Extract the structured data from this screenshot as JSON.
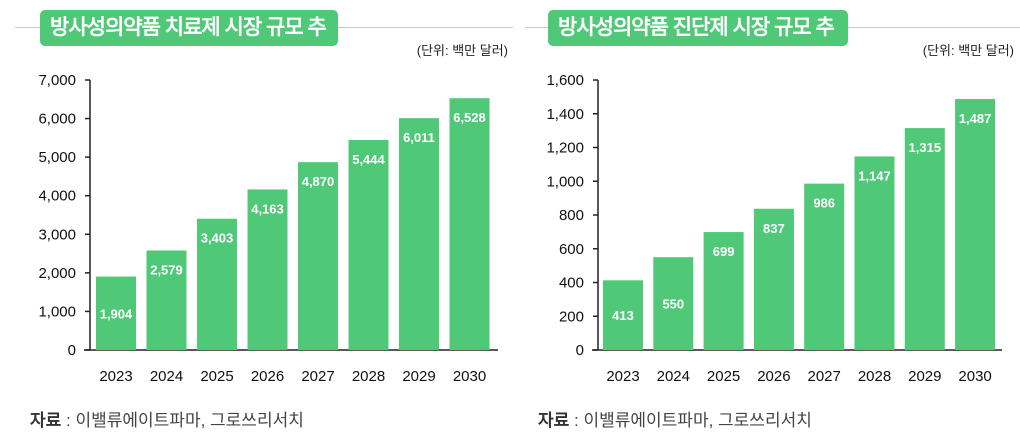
{
  "chart_data": [
    {
      "type": "bar",
      "title": "방사성의약품 치료제 시장 규모 추이",
      "unit": "(단위: 백만 달러)",
      "categories": [
        "2023",
        "2024",
        "2025",
        "2026",
        "2027",
        "2028",
        "2029",
        "2030"
      ],
      "values": [
        1904,
        2579,
        3403,
        4163,
        4870,
        5444,
        6011,
        6528
      ],
      "value_labels": [
        "1,904",
        "2,579",
        "3,403",
        "4,163",
        "4,870",
        "5,444",
        "6,011",
        "6,528"
      ],
      "ylim": [
        0,
        7000
      ],
      "yticks": [
        "0",
        "1,000",
        "2,000",
        "3,000",
        "4,000",
        "5,000",
        "6,000",
        "7,000"
      ],
      "grid": false,
      "bar_color": "#4fc878",
      "source_label": "자료",
      "source_text": ": 이밸류에이트파마, 그로쓰리서치"
    },
    {
      "type": "bar",
      "title": "방사성의약품 진단제 시장 규모 추이",
      "unit": "(단위: 백만 달러)",
      "categories": [
        "2023",
        "2024",
        "2025",
        "2026",
        "2027",
        "2028",
        "2029",
        "2030"
      ],
      "values": [
        413,
        550,
        699,
        837,
        986,
        1147,
        1315,
        1487
      ],
      "value_labels": [
        "413",
        "550",
        "699",
        "837",
        "986",
        "1,147",
        "1,315",
        "1,487"
      ],
      "ylim": [
        0,
        1600
      ],
      "yticks": [
        "0",
        "200",
        "400",
        "600",
        "800",
        "1,000",
        "1,200",
        "1,400",
        "1,600"
      ],
      "grid": false,
      "bar_color": "#4fc878",
      "source_label": "자료",
      "source_text": ": 이밸류에이트파마, 그로쓰리서치"
    }
  ]
}
